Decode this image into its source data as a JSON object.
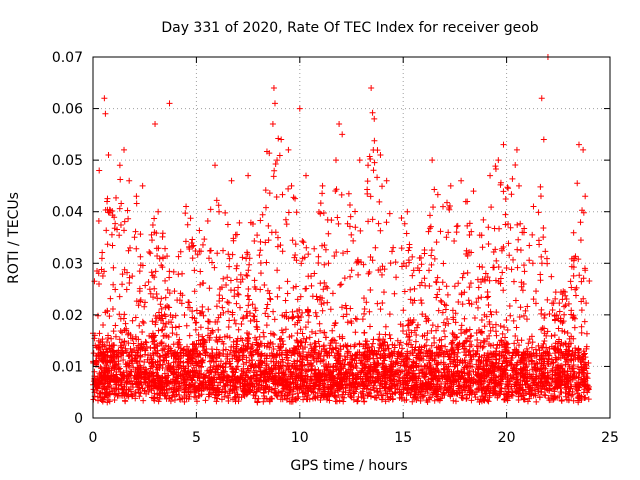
{
  "chart_data": {
    "type": "scatter",
    "title": "Day 331 of 2020, Rate Of TEC Index for receiver geob",
    "xlabel": "GPS time / hours",
    "ylabel": "ROTI / TECUs",
    "xlim": [
      0,
      25
    ],
    "ylim": [
      0,
      0.07
    ],
    "x_ticks": [
      0,
      5,
      10,
      15,
      20,
      25
    ],
    "y_ticks": [
      0,
      0.01,
      0.02,
      0.03,
      0.04,
      0.05,
      0.06,
      0.07
    ],
    "x_tick_labels": [
      "0",
      "5",
      "10",
      "15",
      "20",
      "25"
    ],
    "y_tick_labels": [
      "0",
      "0.01",
      "0.02",
      "0.03",
      "0.04",
      "0.05",
      "0.06",
      "0.07"
    ],
    "grid": true,
    "marker": "+",
    "color": "#ff0000",
    "series": [
      {
        "x": [
          0.3,
          0.55,
          0.6,
          0.75,
          1.3,
          1.5,
          1.75,
          2.1,
          2.4,
          3.0,
          3.15,
          3.7,
          4.5,
          5.9,
          6.7,
          7.5,
          8.7,
          8.75,
          8.8,
          8.9,
          9.1,
          9.45,
          9.6,
          10.0,
          10.3,
          11.1,
          11.75,
          11.9,
          12.05,
          12.9,
          13.3,
          13.45,
          13.6,
          13.9,
          14.2,
          15.2,
          16.4,
          17.3,
          17.8,
          18.4,
          19.2,
          19.6,
          19.85,
          20.5,
          20.6,
          21.3,
          21.7,
          21.8,
          22.0,
          23.5,
          23.7,
          23.8
        ],
        "y": [
          0.048,
          0.062,
          0.059,
          0.051,
          0.049,
          0.052,
          0.046,
          0.043,
          0.045,
          0.057,
          0.04,
          0.061,
          0.041,
          0.049,
          0.046,
          0.047,
          0.057,
          0.064,
          0.061,
          0.05,
          0.054,
          0.052,
          0.045,
          0.06,
          0.047,
          0.045,
          0.05,
          0.057,
          0.055,
          0.05,
          0.049,
          0.064,
          0.058,
          0.051,
          0.046,
          0.04,
          0.05,
          0.045,
          0.046,
          0.044,
          0.047,
          0.05,
          0.053,
          0.052,
          0.045,
          0.041,
          0.062,
          0.054,
          0.07,
          0.053,
          0.052,
          0.043
        ]
      }
    ],
    "dense_band": {
      "description": "dense cloud of points between 0.004 and 0.015 across all hours",
      "y_range": [
        0.003,
        0.016
      ],
      "x_range": [
        0,
        24
      ]
    },
    "activity_profile": {
      "hours": [
        0,
        0.5,
        1,
        1.5,
        2,
        2.5,
        3,
        3.5,
        4,
        4.5,
        5,
        5.5,
        6,
        6.5,
        7,
        7.5,
        8,
        8.5,
        9,
        9.5,
        10,
        10.5,
        11,
        11.5,
        12,
        12.5,
        13,
        13.5,
        14,
        14.5,
        15,
        15.5,
        16,
        16.5,
        17,
        17.5,
        18,
        18.5,
        19,
        19.5,
        20,
        20.5,
        21,
        21.5,
        22,
        22.5,
        23,
        23.5,
        24
      ],
      "upper_envelope": [
        0.028,
        0.047,
        0.04,
        0.052,
        0.045,
        0.032,
        0.04,
        0.035,
        0.028,
        0.042,
        0.035,
        0.04,
        0.048,
        0.04,
        0.043,
        0.04,
        0.036,
        0.06,
        0.055,
        0.046,
        0.04,
        0.035,
        0.045,
        0.038,
        0.055,
        0.042,
        0.04,
        0.06,
        0.05,
        0.04,
        0.04,
        0.03,
        0.035,
        0.045,
        0.043,
        0.04,
        0.045,
        0.035,
        0.045,
        0.05,
        0.045,
        0.05,
        0.035,
        0.055,
        0.03,
        0.026,
        0.024,
        0.05,
        0.03
      ]
    }
  }
}
